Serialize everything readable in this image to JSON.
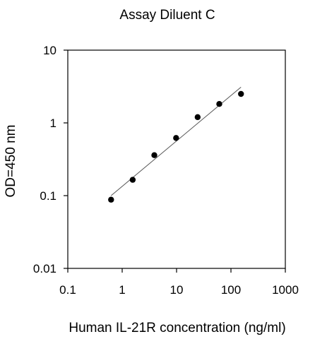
{
  "chart_data": {
    "type": "scatter",
    "title": "Assay Diluent C",
    "xlabel": "Human IL-21R concentration (ng/ml)",
    "ylabel": "OD=450 nm",
    "x_scale": "log",
    "y_scale": "log",
    "xlim": [
      0.1,
      1000
    ],
    "ylim": [
      0.01,
      10
    ],
    "x_ticks": [
      {
        "value": 0.1,
        "label": "0.1"
      },
      {
        "value": 1,
        "label": "1"
      },
      {
        "value": 10,
        "label": "10"
      },
      {
        "value": 100,
        "label": "100"
      },
      {
        "value": 1000,
        "label": "1000"
      }
    ],
    "y_ticks": [
      {
        "value": 0.01,
        "label": "0.01"
      },
      {
        "value": 0.1,
        "label": "0.1"
      },
      {
        "value": 1,
        "label": "1"
      },
      {
        "value": 10,
        "label": "10"
      }
    ],
    "grid": false,
    "legend": "none",
    "series": [
      {
        "points": [
          {
            "x": 0.625,
            "y": 0.088
          },
          {
            "x": 1.56,
            "y": 0.165
          },
          {
            "x": 3.9,
            "y": 0.36
          },
          {
            "x": 9.8,
            "y": 0.62
          },
          {
            "x": 24.4,
            "y": 1.2
          },
          {
            "x": 61,
            "y": 1.82
          },
          {
            "x": 153,
            "y": 2.5
          }
        ]
      }
    ],
    "fit_line": {
      "x": [
        0.625,
        153
      ],
      "y": [
        0.1,
        3.1
      ]
    },
    "colors": {
      "marker": "#000000",
      "fit_line": "#555555",
      "axis": "#000000"
    }
  }
}
